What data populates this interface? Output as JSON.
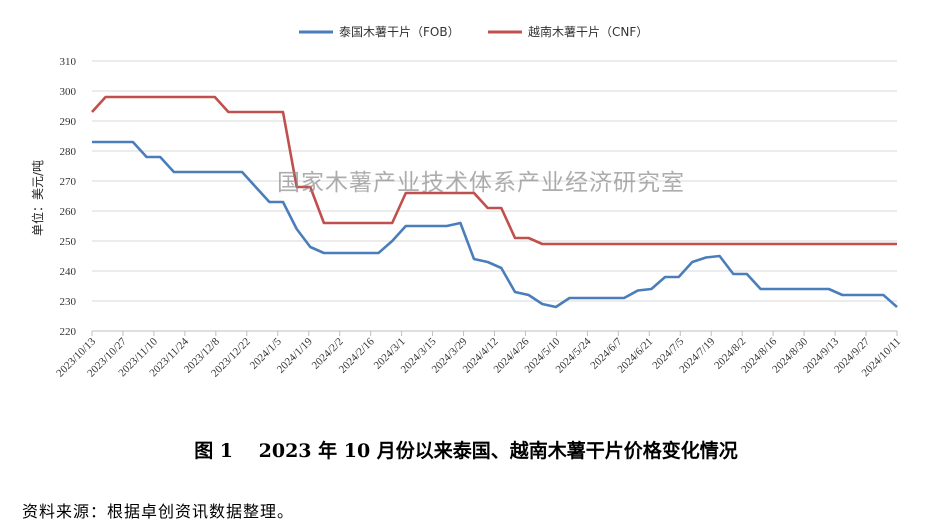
{
  "chart_data": {
    "type": "line",
    "ylabel": "单位：美元/吨",
    "ylim": [
      220,
      310
    ],
    "yticks": [
      220,
      230,
      240,
      250,
      260,
      270,
      280,
      290,
      300,
      310
    ],
    "xticks": [
      "2023/10/13",
      "2023/10/27",
      "2023/11/10",
      "2023/11/24",
      "2023/12/8",
      "2023/12/22",
      "2024/1/5",
      "2024/1/19",
      "2024/2/2",
      "2024/2/16",
      "2024/3/1",
      "2024/3/15",
      "2024/3/29",
      "2024/4/12",
      "2024/4/26",
      "2024/5/10",
      "2024/5/24",
      "2024/6/7",
      "2024/6/21",
      "2024/7/5",
      "2024/7/19",
      "2024/8/2",
      "2024/8/16",
      "2024/8/30",
      "2024/9/13",
      "2024/9/27",
      "2024/10/11"
    ],
    "grid": true,
    "legend": "top",
    "series": [
      {
        "name": "泰国木薯干片（FOB）",
        "color": "#4a7ebb",
        "values": [
          283,
          283,
          283,
          283,
          278,
          278,
          273,
          273,
          273,
          273,
          273,
          273,
          268,
          263,
          263,
          254,
          248,
          246,
          246,
          246,
          246,
          246,
          250,
          255,
          255,
          255,
          255,
          256,
          244,
          243,
          241,
          233,
          232,
          229,
          228,
          231,
          231,
          231,
          231,
          231,
          233.5,
          234,
          238,
          238,
          243,
          244.5,
          245,
          239,
          239,
          234,
          234,
          234,
          234,
          234,
          234,
          232,
          232,
          232,
          232,
          228
        ]
      },
      {
        "name": "越南木薯干片（CNF）",
        "color": "#c0504d",
        "values": [
          293,
          298,
          298,
          298,
          298,
          298,
          298,
          298,
          298,
          298,
          293,
          293,
          293,
          293,
          293,
          268,
          268,
          256,
          256,
          256,
          256,
          256,
          256,
          266,
          266,
          266,
          266,
          266,
          266,
          261,
          261,
          251,
          251,
          249,
          249,
          249,
          249,
          249,
          249,
          249,
          249,
          249,
          249,
          249,
          249,
          249,
          249,
          249,
          249,
          249,
          249,
          249,
          249,
          249,
          249,
          249,
          249,
          249,
          249,
          249
        ]
      }
    ]
  },
  "watermark": "国家木薯产业技术体系产业经济研究室",
  "caption": "图 1　 2023 年 10 月份以来泰国、越南木薯干片价格变化情况",
  "source": "资料来源：根据卓创资讯数据整理。"
}
